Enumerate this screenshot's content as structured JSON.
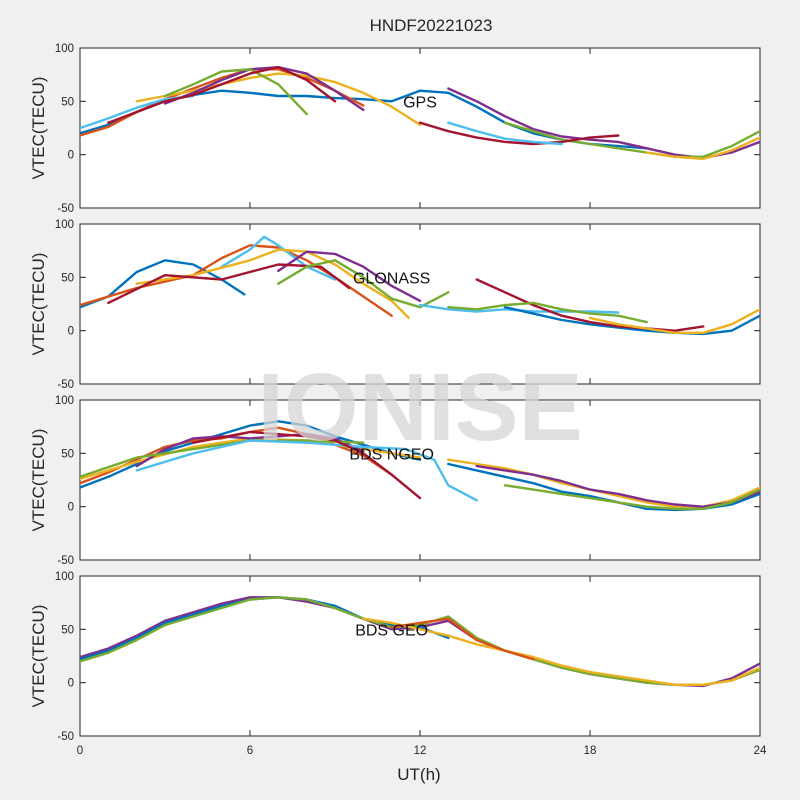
{
  "title": "HNDF20221023",
  "watermark": "IONISE",
  "xlabel": "UT(h)",
  "chart_data": [
    {
      "type": "line",
      "panel_label": "GPS",
      "ylabel": "VTEC(TECU)",
      "xlim": [
        0,
        24
      ],
      "ylim": [
        -50,
        100
      ],
      "xticks": [
        0,
        6,
        12,
        18,
        24
      ],
      "yticks": [
        -50,
        0,
        50,
        100
      ],
      "series": [
        {
          "color": "#0072BD",
          "x": [
            0,
            1,
            2,
            3,
            4,
            5,
            6,
            7,
            8,
            9,
            10,
            11
          ],
          "y": [
            20,
            28,
            40,
            50,
            56,
            60,
            58,
            55,
            55,
            53,
            52,
            50
          ]
        },
        {
          "color": "#D95319",
          "x": [
            0,
            1,
            2,
            3,
            4,
            5,
            6,
            7,
            8,
            9,
            10
          ],
          "y": [
            18,
            26,
            40,
            52,
            62,
            72,
            80,
            80,
            72,
            60,
            46
          ]
        },
        {
          "color": "#EDB120",
          "x": [
            2,
            3,
            4,
            5,
            6,
            7,
            8,
            9,
            10,
            11,
            12
          ],
          "y": [
            50,
            55,
            60,
            66,
            72,
            76,
            74,
            68,
            58,
            45,
            28
          ]
        },
        {
          "color": "#7E2F8E",
          "x": [
            3,
            4,
            5,
            6,
            7,
            8,
            9,
            10
          ],
          "y": [
            48,
            58,
            70,
            80,
            82,
            76,
            60,
            42
          ]
        },
        {
          "color": "#77AC30",
          "x": [
            3,
            4,
            5,
            6,
            7,
            8
          ],
          "y": [
            55,
            66,
            78,
            80,
            66,
            38
          ]
        },
        {
          "color": "#4DBEEE",
          "x": [
            0,
            1,
            2,
            3,
            4
          ],
          "y": [
            25,
            34,
            44,
            52,
            55
          ]
        },
        {
          "color": "#A2142F",
          "x": [
            1,
            2,
            3,
            4,
            5,
            6,
            7,
            8,
            9
          ],
          "y": [
            30,
            40,
            50,
            56,
            66,
            76,
            82,
            70,
            50
          ]
        },
        {
          "color": "#0072BD",
          "x": [
            11,
            12,
            13,
            14,
            15,
            16,
            17,
            18,
            19,
            20
          ],
          "y": [
            50,
            60,
            58,
            45,
            30,
            20,
            14,
            10,
            8,
            6
          ]
        },
        {
          "color": "#7E2F8E",
          "x": [
            13,
            14,
            15,
            16,
            17,
            18,
            19,
            20,
            21,
            22,
            23,
            24
          ],
          "y": [
            62,
            50,
            36,
            24,
            17,
            14,
            12,
            6,
            0,
            -3,
            2,
            12
          ]
        },
        {
          "color": "#77AC30",
          "x": [
            15,
            16,
            17,
            18,
            19,
            20,
            21,
            22,
            23,
            24
          ],
          "y": [
            30,
            22,
            14,
            10,
            6,
            2,
            -2,
            -2,
            8,
            22
          ]
        },
        {
          "color": "#EDB120",
          "x": [
            20,
            21,
            22,
            23,
            24
          ],
          "y": [
            2,
            -2,
            -4,
            4,
            16
          ]
        },
        {
          "color": "#A2142F",
          "x": [
            12,
            13,
            14,
            15,
            16,
            17,
            18,
            19
          ],
          "y": [
            30,
            22,
            16,
            12,
            10,
            12,
            16,
            18
          ]
        },
        {
          "color": "#4DBEEE",
          "x": [
            13,
            14,
            15,
            16,
            17
          ],
          "y": [
            30,
            22,
            15,
            12,
            10
          ]
        }
      ]
    },
    {
      "type": "line",
      "panel_label": "GLONASS",
      "ylabel": "VTEC(TECU)",
      "xlim": [
        0,
        24
      ],
      "ylim": [
        -50,
        100
      ],
      "xticks": [
        0,
        6,
        12,
        18,
        24
      ],
      "yticks": [
        -50,
        0,
        50,
        100
      ],
      "series": [
        {
          "color": "#0072BD",
          "x": [
            0,
            1,
            2,
            3,
            4,
            5,
            5.8
          ],
          "y": [
            22,
            32,
            55,
            66,
            62,
            48,
            34
          ]
        },
        {
          "color": "#D95319",
          "x": [
            0,
            2,
            4,
            5,
            6,
            7,
            8,
            9,
            10,
            11
          ],
          "y": [
            24,
            40,
            52,
            68,
            80,
            78,
            66,
            50,
            32,
            14
          ]
        },
        {
          "color": "#4DBEEE",
          "x": [
            5,
            6,
            6.5,
            7,
            8,
            9
          ],
          "y": [
            60,
            76,
            88,
            80,
            60,
            48
          ]
        },
        {
          "color": "#EDB120",
          "x": [
            2,
            4,
            6,
            7,
            8,
            9,
            10,
            11,
            11.6
          ],
          "y": [
            44,
            52,
            66,
            76,
            74,
            62,
            44,
            28,
            12
          ]
        },
        {
          "color": "#7E2F8E",
          "x": [
            7,
            8,
            9,
            10,
            11,
            12
          ],
          "y": [
            56,
            74,
            72,
            60,
            42,
            28
          ]
        },
        {
          "color": "#A2142F",
          "x": [
            1,
            3,
            5,
            7,
            8.5,
            9.5
          ],
          "y": [
            26,
            52,
            48,
            62,
            60,
            40
          ]
        },
        {
          "color": "#77AC30",
          "x": [
            7,
            8,
            9,
            10,
            11,
            12,
            13
          ],
          "y": [
            44,
            60,
            66,
            50,
            30,
            22,
            36
          ]
        },
        {
          "color": "#4DBEEE",
          "x": [
            12,
            13,
            14,
            15,
            16,
            17,
            18,
            19
          ],
          "y": [
            24,
            20,
            18,
            20,
            18,
            18,
            18,
            17
          ]
        },
        {
          "color": "#0072BD",
          "x": [
            15,
            16,
            17,
            18,
            19,
            20,
            21,
            22,
            23,
            24
          ],
          "y": [
            22,
            16,
            10,
            6,
            3,
            0,
            -2,
            -3,
            0,
            14
          ]
        },
        {
          "color": "#A2142F",
          "x": [
            14,
            15,
            16,
            17,
            18,
            19,
            20,
            21,
            22
          ],
          "y": [
            48,
            36,
            24,
            14,
            8,
            4,
            2,
            0,
            4
          ]
        },
        {
          "color": "#EDB120",
          "x": [
            18,
            19,
            20,
            21,
            22,
            23,
            24
          ],
          "y": [
            12,
            6,
            2,
            -2,
            -2,
            6,
            20
          ]
        },
        {
          "color": "#77AC30",
          "x": [
            13,
            14,
            15,
            16,
            17,
            18,
            19,
            20
          ],
          "y": [
            22,
            20,
            24,
            26,
            20,
            16,
            14,
            8
          ]
        }
      ]
    },
    {
      "type": "line",
      "panel_label": "BDS NGEO",
      "ylabel": "VTEC(TECU)",
      "xlim": [
        0,
        24
      ],
      "ylim": [
        -50,
        100
      ],
      "xticks": [
        0,
        6,
        12,
        18,
        24
      ],
      "yticks": [
        -50,
        0,
        50,
        100
      ],
      "series": [
        {
          "color": "#0072BD",
          "x": [
            0,
            1,
            2,
            3,
            4,
            5,
            6,
            7,
            8,
            9,
            10,
            11,
            12
          ],
          "y": [
            18,
            28,
            40,
            52,
            60,
            68,
            76,
            80,
            76,
            66,
            58,
            50,
            44
          ]
        },
        {
          "color": "#D95319",
          "x": [
            0,
            1,
            2,
            3,
            4,
            5,
            6,
            7,
            8,
            9,
            10,
            11
          ],
          "y": [
            22,
            32,
            44,
            56,
            62,
            64,
            70,
            74,
            68,
            58,
            48,
            30
          ]
        },
        {
          "color": "#EDB120",
          "x": [
            0,
            2,
            4,
            6,
            8,
            10,
            11,
            12
          ],
          "y": [
            26,
            42,
            56,
            64,
            62,
            54,
            50,
            46
          ]
        },
        {
          "color": "#7E2F8E",
          "x": [
            2,
            3,
            4,
            5,
            6,
            7,
            8,
            9,
            10
          ],
          "y": [
            38,
            54,
            64,
            66,
            64,
            66,
            68,
            64,
            52
          ]
        },
        {
          "color": "#77AC30",
          "x": [
            0,
            2,
            4,
            6,
            8,
            10
          ],
          "y": [
            28,
            46,
            54,
            62,
            62,
            60
          ]
        },
        {
          "color": "#4DBEEE",
          "x": [
            2,
            4,
            6,
            8,
            10,
            11.5,
            12.5,
            13,
            14
          ],
          "y": [
            34,
            50,
            62,
            60,
            56,
            54,
            44,
            20,
            6
          ]
        },
        {
          "color": "#A2142F",
          "x": [
            4,
            6,
            8,
            9,
            10,
            11,
            12
          ],
          "y": [
            60,
            70,
            66,
            62,
            50,
            30,
            8
          ]
        },
        {
          "color": "#0072BD",
          "x": [
            13,
            14,
            15,
            16,
            17,
            18,
            19,
            20,
            21,
            22,
            23,
            24
          ],
          "y": [
            40,
            34,
            28,
            22,
            14,
            10,
            4,
            -2,
            -3,
            -2,
            2,
            12
          ]
        },
        {
          "color": "#EDB120",
          "x": [
            13,
            14,
            15,
            16,
            17,
            18,
            19,
            20,
            21,
            22,
            23,
            24
          ],
          "y": [
            44,
            40,
            36,
            30,
            22,
            16,
            10,
            4,
            0,
            0,
            6,
            18
          ]
        },
        {
          "color": "#7E2F8E",
          "x": [
            14,
            15,
            16,
            17,
            18,
            19,
            20,
            21,
            22,
            23,
            24
          ],
          "y": [
            38,
            34,
            30,
            24,
            16,
            12,
            6,
            2,
            0,
            4,
            14
          ]
        },
        {
          "color": "#77AC30",
          "x": [
            15,
            16,
            17,
            18,
            19,
            20,
            21,
            22,
            23,
            24
          ],
          "y": [
            20,
            16,
            12,
            8,
            4,
            0,
            -2,
            -2,
            4,
            16
          ]
        }
      ]
    },
    {
      "type": "line",
      "panel_label": "BDS GEO",
      "ylabel": "VTEC(TECU)",
      "xlim": [
        0,
        24
      ],
      "ylim": [
        -50,
        100
      ],
      "xticks": [
        0,
        6,
        12,
        18,
        24
      ],
      "yticks": [
        -50,
        0,
        50,
        100
      ],
      "series": [
        {
          "color": "#7E2F8E",
          "x": [
            0,
            1,
            2,
            3,
            4,
            5,
            6,
            7,
            8,
            9,
            10,
            11,
            12,
            13,
            14,
            15,
            16,
            17,
            18,
            19,
            20,
            21,
            22,
            23,
            24
          ],
          "y": [
            24,
            32,
            44,
            58,
            66,
            74,
            80,
            80,
            76,
            70,
            60,
            50,
            52,
            58,
            40,
            30,
            22,
            14,
            8,
            4,
            0,
            -2,
            -3,
            4,
            18
          ]
        },
        {
          "color": "#0072BD",
          "x": [
            0,
            1,
            2,
            3,
            4,
            5,
            6,
            7,
            8,
            9,
            10,
            11,
            12,
            13
          ],
          "y": [
            22,
            30,
            42,
            56,
            64,
            72,
            78,
            80,
            78,
            72,
            60,
            54,
            52,
            42
          ]
        },
        {
          "color": "#77AC30",
          "x": [
            0,
            1,
            2,
            3,
            4,
            5,
            6,
            7,
            8,
            9,
            10,
            11,
            12,
            13,
            14,
            15,
            16,
            17,
            18,
            19,
            20,
            21,
            22,
            23,
            24
          ],
          "y": [
            20,
            28,
            40,
            54,
            62,
            70,
            78,
            80,
            78,
            70,
            60,
            52,
            54,
            62,
            42,
            30,
            22,
            14,
            8,
            4,
            0,
            -2,
            -2,
            2,
            12
          ]
        },
        {
          "color": "#EDB120",
          "x": [
            10,
            11,
            12,
            13,
            14,
            15,
            16,
            17,
            18,
            19,
            20,
            21,
            22,
            23,
            24
          ],
          "y": [
            60,
            56,
            50,
            44,
            36,
            30,
            24,
            16,
            10,
            6,
            2,
            -2,
            -2,
            2,
            14
          ]
        },
        {
          "color": "#D95319",
          "x": [
            11,
            12,
            13,
            14,
            15,
            16
          ],
          "y": [
            52,
            56,
            60,
            40,
            30,
            22
          ]
        }
      ]
    }
  ]
}
